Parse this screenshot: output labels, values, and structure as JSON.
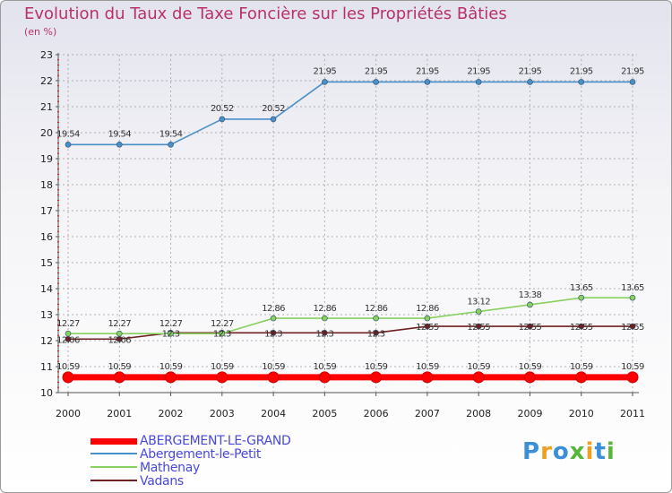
{
  "title": "Evolution du Taux de Taxe Foncière sur les Propriétés Bâties",
  "unit_label": "(en %)",
  "logo": {
    "text": "Proxiti",
    "colors": [
      "#3a8fd6",
      "#f0a020",
      "#3a8fd6",
      "#58b63a",
      "#f0a020",
      "#3a8fd6",
      "#58b63a"
    ]
  },
  "chart_data": {
    "type": "line",
    "title": "Evolution du Taux de Taxe Foncière sur les Propriétés Bâties",
    "ylabel": "(en %)",
    "xlabel": "",
    "x": [
      "2000",
      "2001",
      "2002",
      "2003",
      "2004",
      "2005",
      "2006",
      "2007",
      "2008",
      "2009",
      "2010",
      "2011"
    ],
    "ylim": [
      10,
      23
    ],
    "yticks": [
      "10",
      "11",
      "12",
      "13",
      "14",
      "15",
      "16",
      "17",
      "18",
      "19",
      "20",
      "21",
      "22",
      "23"
    ],
    "legend_position": "bottom-left",
    "series": [
      {
        "name": "ABERGEMENT-LE-GRAND",
        "color": "#ff0000",
        "values": [
          10.59,
          10.59,
          10.59,
          10.59,
          10.59,
          10.59,
          10.59,
          10.59,
          10.59,
          10.59,
          10.59,
          10.59
        ],
        "labels": [
          "10.59",
          "10.59",
          "10.59",
          "10.59",
          "10.59",
          "10.59",
          "10.59",
          "10.59",
          "10.59",
          "10.59",
          "10.59",
          "10.59"
        ]
      },
      {
        "name": "Abergement-le-Petit",
        "color": "#4a8fc8",
        "values": [
          19.54,
          19.54,
          19.54,
          20.52,
          20.52,
          21.95,
          21.95,
          21.95,
          21.95,
          21.95,
          21.95,
          21.95
        ],
        "labels": [
          "19.54",
          "19.54",
          "19.54",
          "20.52",
          "20.52",
          "21.95",
          "21.95",
          "21.95",
          "21.95",
          "21.95",
          "21.95",
          "21.95"
        ]
      },
      {
        "name": "Mathenay",
        "color": "#88d060",
        "values": [
          12.27,
          12.27,
          12.27,
          12.27,
          12.86,
          12.86,
          12.86,
          12.86,
          13.12,
          13.38,
          13.65,
          13.65
        ],
        "labels": [
          "12.27",
          "12.27",
          "12.27",
          "12.27",
          "12.86",
          "12.86",
          "12.86",
          "12.86",
          "13.12",
          "13.38",
          "13.65",
          "13.65"
        ]
      },
      {
        "name": "Vadans",
        "color": "#702020",
        "values": [
          12.06,
          12.06,
          12.3,
          12.3,
          12.3,
          12.3,
          12.3,
          12.55,
          12.55,
          12.55,
          12.55,
          12.55
        ],
        "labels": [
          "12.06",
          "12.06",
          "12.3",
          "12.3",
          "12.3",
          "12.3",
          "12.3",
          "12.55",
          "12.55",
          "12.55",
          "12.55",
          "12.55"
        ]
      }
    ]
  }
}
